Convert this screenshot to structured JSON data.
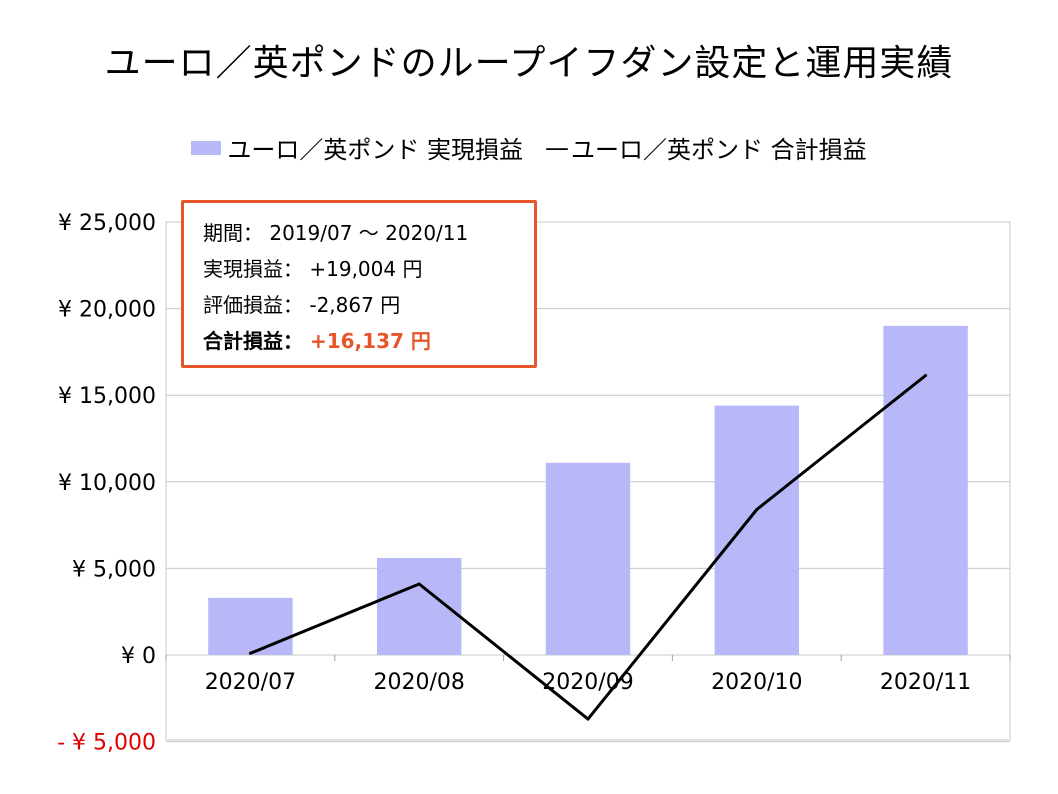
{
  "title": "ユーロ／英ポンドのループイフダン設定と運用実績",
  "legend": {
    "bar_label": "ユーロ／英ポンド 実現損益",
    "line_mark": "—",
    "line_label": "ユーロ／英ポンド 合計損益"
  },
  "info": {
    "period_label": "期間：",
    "period_value": "2019/07 ～ 2020/11",
    "realized_label": "実現損益：",
    "realized_value": "+19,004 円",
    "unrealized_label": "評価損益：",
    "unrealized_value": "-2,867 円",
    "total_label": "合計損益：",
    "total_value": "+16,137 円"
  },
  "colors": {
    "bar": "#b8b8f8",
    "line": "#000000",
    "negative_tick": "#e00000",
    "accent": "#e8552a",
    "grid": "#c8c8c8"
  },
  "chart_data": {
    "type": "bar",
    "title": "ユーロ／英ポンドのループイフダン設定と運用実績",
    "categories": [
      "2020/07",
      "2020/08",
      "2020/09",
      "2020/10",
      "2020/11"
    ],
    "series": [
      {
        "name": "ユーロ／英ポンド 実現損益",
        "type": "bar",
        "values": [
          3300,
          5600,
          11100,
          14400,
          19004
        ]
      },
      {
        "name": "ユーロ／英ポンド 合計損益",
        "type": "line",
        "values": [
          100,
          4100,
          -3700,
          8400,
          16137
        ]
      }
    ],
    "ylim": [
      -5000,
      25000
    ],
    "yticks": [
      25000,
      20000,
      15000,
      10000,
      5000,
      0,
      -5000
    ],
    "ytick_labels": [
      "¥ 25,000",
      "¥ 20,000",
      "¥ 15,000",
      "¥ 10,000",
      "¥ 5,000",
      "¥ 0",
      "- ¥ 5,000"
    ],
    "xlabel": "",
    "ylabel": "",
    "grid": true,
    "legend_position": "top"
  }
}
